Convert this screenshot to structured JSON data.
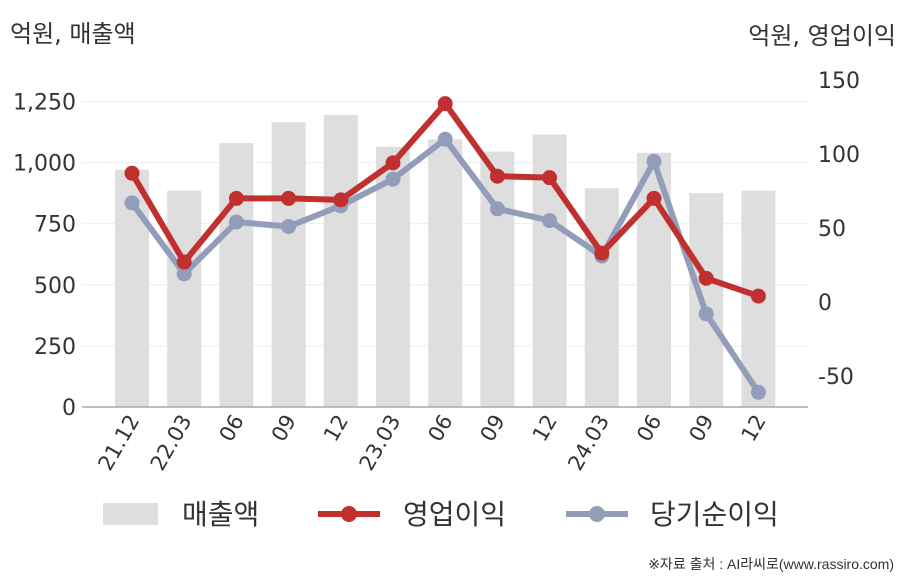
{
  "units": {
    "left": "억원, 매출액",
    "right": "억원, 영업이익"
  },
  "source": "※자료 출처 : AI라씨로(www.rassiro.com)",
  "colors": {
    "bar": "#dedede",
    "operating": "#c0302f",
    "net": "#929eb9"
  },
  "chart_data": {
    "type": "bar+line",
    "categories": [
      "21.12",
      "22.03",
      "06",
      "09",
      "12",
      "23.03",
      "06",
      "09",
      "12",
      "24.03",
      "06",
      "09",
      "12"
    ],
    "series": [
      {
        "name": "매출액",
        "type": "bar",
        "axis": "left",
        "values": [
          970,
          885,
          1080,
          1165,
          1195,
          1065,
          1095,
          1045,
          1115,
          895,
          1040,
          875,
          885
        ]
      },
      {
        "name": "영업이익",
        "type": "line",
        "axis": "right",
        "values": [
          87,
          27,
          70,
          70,
          69,
          94,
          134,
          85,
          84,
          33,
          70,
          16,
          4
        ]
      },
      {
        "name": "당기순이익",
        "type": "line",
        "axis": "right",
        "values": [
          67,
          19,
          54,
          51,
          65,
          83,
          110,
          63,
          55,
          31,
          95,
          -8,
          -61
        ]
      }
    ],
    "y_left": {
      "min": 0,
      "max": 1350,
      "ticks": [
        0,
        250,
        500,
        750,
        1000,
        1250
      ],
      "tick_labels": [
        "0",
        "250",
        "500",
        "750",
        "1,000",
        "1,250"
      ]
    },
    "y_right": {
      "min": -70,
      "max": 160,
      "ticks": [
        -50,
        0,
        50,
        100,
        150
      ],
      "tick_labels": [
        "-50",
        "0",
        "50",
        "100",
        "150"
      ]
    },
    "grid": true,
    "legend_position": "bottom"
  }
}
